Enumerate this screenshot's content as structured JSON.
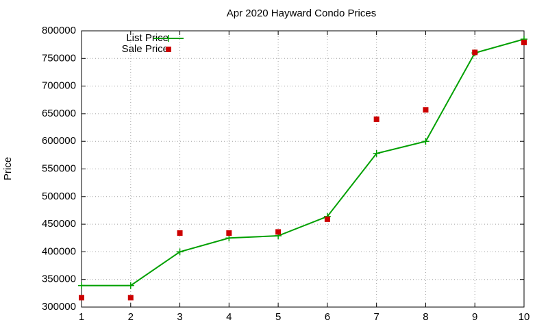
{
  "chart_data": {
    "type": "line",
    "title": "Apr 2020 Hayward Condo Prices",
    "y_label": "Price",
    "x": [
      1,
      2,
      3,
      4,
      5,
      6,
      7,
      8,
      9,
      10
    ],
    "series": [
      {
        "name": "List Price",
        "color": "#00a000",
        "style": "lines+points",
        "values": [
          339000,
          339000,
          400000,
          425000,
          429000,
          464000,
          578000,
          600000,
          760000,
          785000
        ]
      },
      {
        "name": "Sale Price",
        "color": "#cc0000",
        "style": "points",
        "values": [
          317000,
          317000,
          434000,
          434000,
          436000,
          459000,
          640000,
          657000,
          761000,
          779000
        ]
      }
    ],
    "xlim": [
      1,
      10
    ],
    "xticks": [
      1,
      2,
      3,
      4,
      5,
      6,
      7,
      8,
      9,
      10
    ],
    "ylim": [
      300000,
      800000
    ],
    "yticks": [
      300000,
      350000,
      400000,
      450000,
      500000,
      550000,
      600000,
      650000,
      700000,
      750000,
      800000
    ],
    "grid": true,
    "legend": "top-left"
  }
}
